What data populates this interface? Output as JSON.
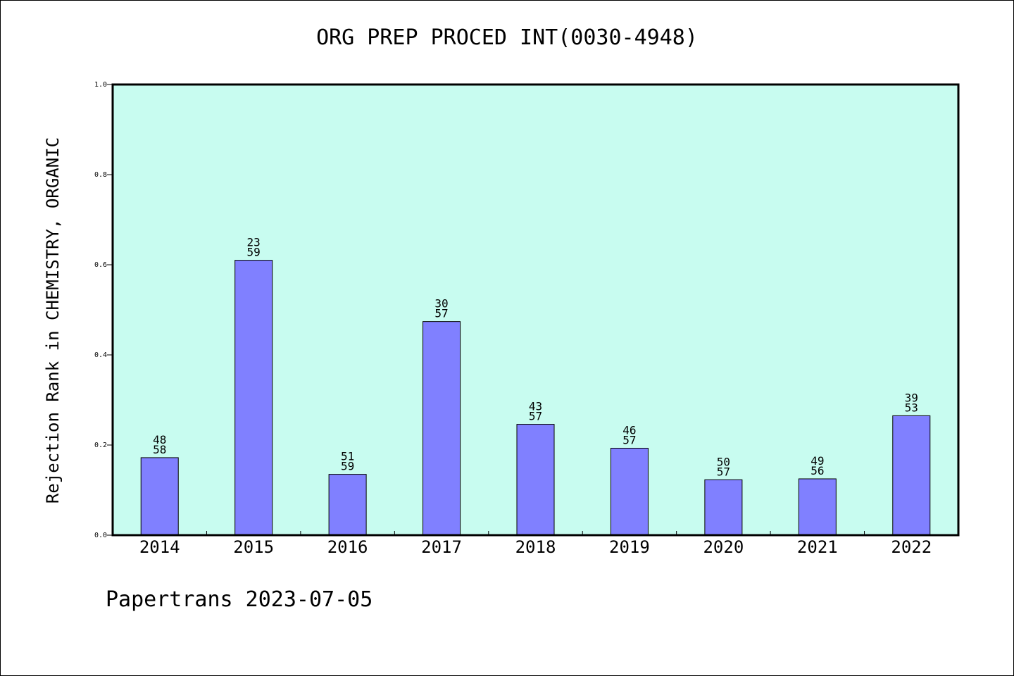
{
  "chart_data": {
    "type": "bar",
    "title": "ORG PREP PROCED INT(0030-4948)",
    "xlabel": "",
    "ylabel": "Rejection Rank in CHEMISTRY, ORGANIC",
    "ylim": [
      0,
      1.0
    ],
    "yticks": [
      "0.0",
      "0.2",
      "0.4",
      "0.6",
      "0.8",
      "1.0"
    ],
    "categories": [
      "2014",
      "2015",
      "2016",
      "2017",
      "2018",
      "2019",
      "2020",
      "2021",
      "2022"
    ],
    "values": [
      0.172,
      0.61,
      0.135,
      0.474,
      0.246,
      0.193,
      0.123,
      0.125,
      0.265
    ],
    "labels_top": [
      "48",
      "23",
      "51",
      "30",
      "43",
      "46",
      "50",
      "49",
      "39"
    ],
    "labels_bottom": [
      "58",
      "59",
      "59",
      "57",
      "57",
      "57",
      "57",
      "56",
      "53"
    ],
    "grid": false,
    "colors": {
      "bar": "#8080ff",
      "plot_background": "#c8fcf0",
      "axis": "#000000"
    }
  },
  "footer": {
    "text": "Papertrans 2023-07-05"
  }
}
